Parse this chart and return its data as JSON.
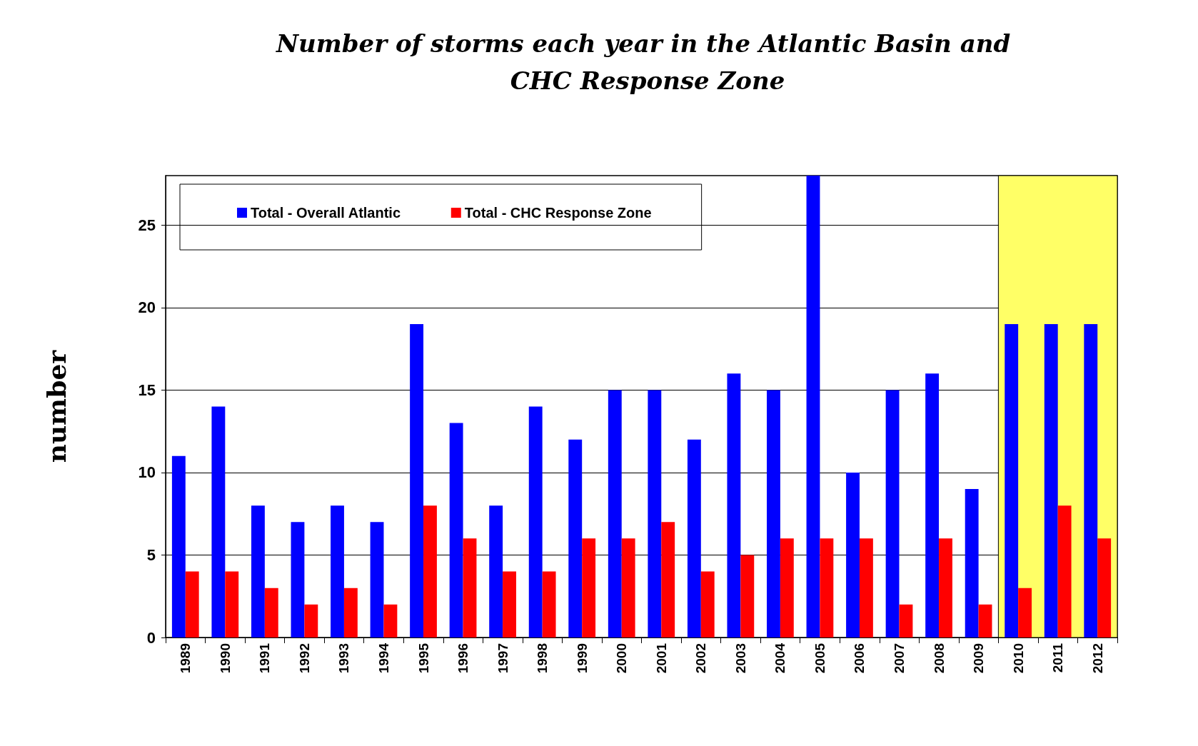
{
  "chart_data": {
    "type": "bar",
    "title": "Number of storms each year in the Atlantic Basin and CHC Response Zone",
    "ylabel": "number",
    "categories": [
      "1989",
      "1990",
      "1991",
      "1992",
      "1993",
      "1994",
      "1995",
      "1996",
      "1997",
      "1998",
      "1999",
      "2000",
      "2001",
      "2002",
      "2003",
      "2004",
      "2005",
      "2006",
      "2007",
      "2008",
      "2009",
      "2010",
      "2011",
      "2012"
    ],
    "series": [
      {
        "name": "Total - Overall Atlantic",
        "color": "#0000ff",
        "values": [
          11,
          14,
          8,
          7,
          8,
          7,
          19,
          13,
          8,
          14,
          12,
          15,
          15,
          12,
          16,
          15,
          28,
          10,
          15,
          16,
          9,
          19,
          19,
          19
        ]
      },
      {
        "name": "Total - CHC Response Zone",
        "color": "#ff0000",
        "values": [
          4,
          4,
          3,
          2,
          3,
          2,
          8,
          6,
          4,
          4,
          6,
          6,
          7,
          4,
          5,
          6,
          6,
          6,
          2,
          6,
          2,
          3,
          8,
          6
        ]
      }
    ],
    "ylim": [
      0,
      28
    ],
    "yticks": [
      0,
      5,
      10,
      15,
      20,
      25
    ],
    "grid": "y",
    "legend": "top left",
    "bands": [
      {
        "axis": "x",
        "from": "2010",
        "to": "2012",
        "color": "#ffff66"
      }
    ]
  }
}
